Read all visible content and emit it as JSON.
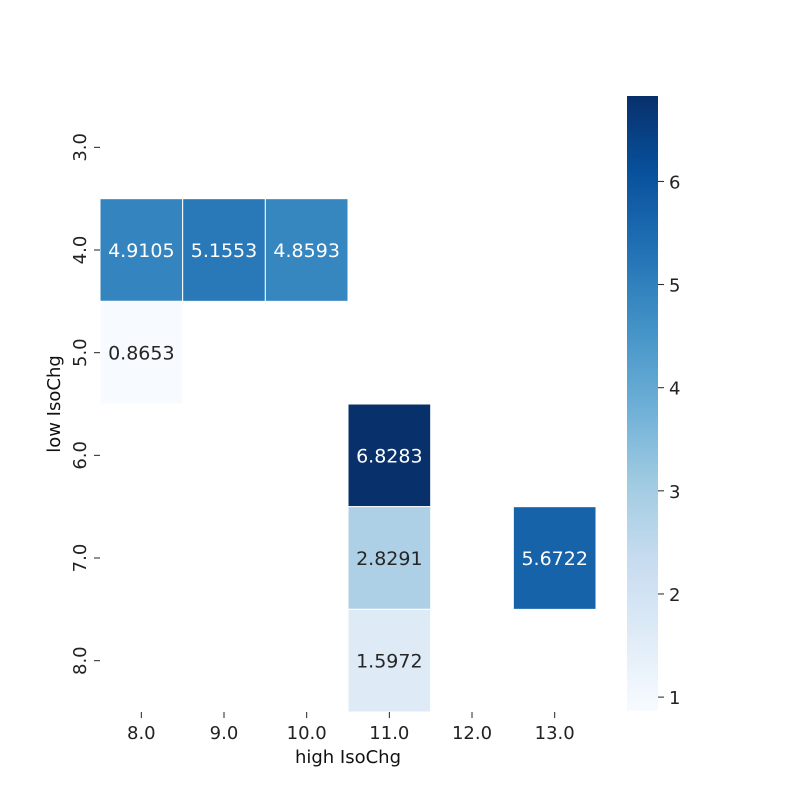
{
  "chart_data": {
    "type": "heatmap",
    "xlabel": "high IsoChg",
    "ylabel": "low IsoChg",
    "x_categories": [
      "8.0",
      "9.0",
      "10.0",
      "11.0",
      "12.0",
      "13.0"
    ],
    "y_categories": [
      "3.0",
      "4.0",
      "5.0",
      "6.0",
      "7.0",
      "8.0"
    ],
    "cells": [
      {
        "x": "8.0",
        "y": "4.0",
        "value": 4.9105,
        "label": "4.9105"
      },
      {
        "x": "9.0",
        "y": "4.0",
        "value": 5.1553,
        "label": "5.1553"
      },
      {
        "x": "10.0",
        "y": "4.0",
        "value": 4.8593,
        "label": "4.8593"
      },
      {
        "x": "8.0",
        "y": "5.0",
        "value": 0.8653,
        "label": "0.8653"
      },
      {
        "x": "11.0",
        "y": "6.0",
        "value": 6.8283,
        "label": "6.8283"
      },
      {
        "x": "11.0",
        "y": "7.0",
        "value": 2.8291,
        "label": "2.8291"
      },
      {
        "x": "13.0",
        "y": "7.0",
        "value": 5.6722,
        "label": "5.6722"
      },
      {
        "x": "11.0",
        "y": "8.0",
        "value": 1.5972,
        "label": "1.5972"
      }
    ],
    "colorbar": {
      "colormap": "Blues",
      "range": [
        0.8653,
        6.8283
      ],
      "ticks": [
        1,
        2,
        3,
        4,
        5,
        6
      ],
      "tick_labels": [
        "1",
        "2",
        "3",
        "4",
        "5",
        "6"
      ]
    },
    "grid": false,
    "colors": {
      "low": "#f7fbff",
      "high": "#08306b"
    }
  }
}
